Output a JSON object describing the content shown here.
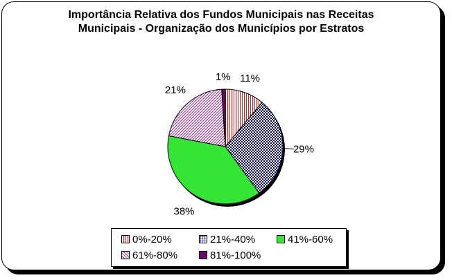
{
  "chart_data": {
    "type": "pie",
    "title": "Importância Relativa dos Fundos Municipais nas Receitas Municipais - Organização dos Municípios por Estratos",
    "title_lines": [
      "Importância Relativa dos Fundos Municipais nas Receitas",
      "Municipais - Organização dos Municípios por Estratos"
    ],
    "categories": [
      "0%-20%",
      "21%-40%",
      "41%-60%",
      "61%-80%",
      "81%-100%"
    ],
    "values": [
      11,
      29,
      38,
      21,
      1
    ],
    "labels": [
      "11%",
      "29%",
      "38%",
      "21%",
      "1%"
    ],
    "colors": [
      "#cc2222",
      "#000080",
      "#33e633",
      "#a0208a",
      "#6a0a6a"
    ],
    "legend_position": "bottom"
  }
}
